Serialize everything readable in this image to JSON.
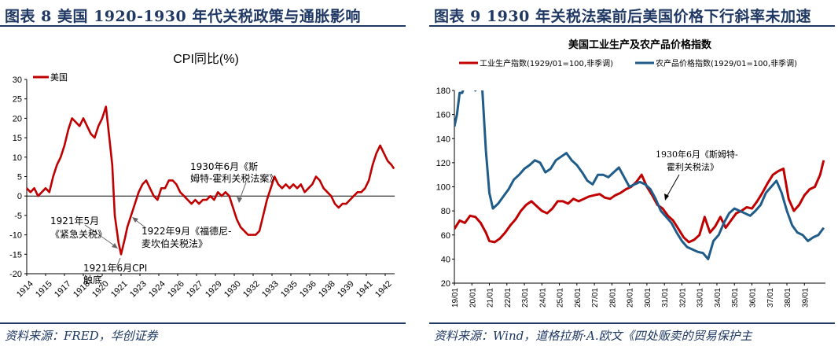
{
  "left": {
    "figure_title": "图表 8   美国 1920-1930 年代关税政策与通胀影响",
    "source": "资料来源：FRED，华创证券",
    "chart_data": {
      "type": "line",
      "title": "CPI同比(%)",
      "legend": [
        "美国"
      ],
      "legend_position": "top-left",
      "color": "#c00000",
      "ylim": [
        -20,
        30
      ],
      "yticks": [
        30,
        25,
        20,
        15,
        10,
        5,
        0,
        -5,
        -10,
        -15,
        -20
      ],
      "xlim": [
        1914,
        1943.25
      ],
      "xticks": [
        "1914",
        "1915",
        "1917",
        "1918",
        "1920",
        "1921",
        "1923",
        "1924",
        "1926",
        "1927",
        "1929",
        "1930",
        "1932",
        "1933",
        "1935",
        "1936",
        "1938",
        "1939",
        "1941",
        "1942"
      ],
      "xtick_years": [
        1914,
        1915.5,
        1917,
        1918.5,
        1920,
        1921.5,
        1923,
        1924.5,
        1926,
        1927.5,
        1929,
        1930.5,
        1932,
        1933.5,
        1935,
        1936.5,
        1938,
        1939.5,
        1941,
        1942.5
      ],
      "series": [
        {
          "name": "美国",
          "x": [
            1914,
            1914.3,
            1914.6,
            1914.9,
            1915.2,
            1915.5,
            1915.8,
            1916.1,
            1916.4,
            1916.7,
            1917.0,
            1917.3,
            1917.6,
            1917.9,
            1918.2,
            1918.5,
            1918.8,
            1919.1,
            1919.4,
            1919.7,
            1920.0,
            1920.3,
            1920.5,
            1920.8,
            1921.0,
            1921.3,
            1921.5,
            1921.8,
            1922.0,
            1922.3,
            1922.6,
            1922.9,
            1923.2,
            1923.5,
            1923.8,
            1924.1,
            1924.4,
            1924.7,
            1925.0,
            1925.3,
            1925.6,
            1925.9,
            1926.2,
            1926.5,
            1926.8,
            1927.1,
            1927.4,
            1927.7,
            1928.0,
            1928.3,
            1928.6,
            1928.9,
            1929.2,
            1929.5,
            1929.8,
            1930.1,
            1930.4,
            1930.7,
            1931.0,
            1931.3,
            1931.6,
            1931.9,
            1932.2,
            1932.5,
            1932.8,
            1933.1,
            1933.4,
            1933.7,
            1934.0,
            1934.3,
            1934.6,
            1934.9,
            1935.2,
            1935.5,
            1935.8,
            1936.1,
            1936.4,
            1936.7,
            1937.0,
            1937.3,
            1937.6,
            1937.9,
            1938.2,
            1938.5,
            1938.8,
            1939.1,
            1939.4,
            1939.7,
            1940.0,
            1940.3,
            1940.6,
            1940.9,
            1941.2,
            1941.5,
            1941.8,
            1942.1,
            1942.4,
            1942.7,
            1943.0,
            1943.2
          ],
          "y": [
            2,
            1,
            2,
            0,
            1,
            2,
            1,
            5,
            8,
            10,
            13,
            17,
            20,
            19,
            18,
            20,
            18,
            16,
            15,
            18,
            20,
            23,
            17,
            8,
            -5,
            -12,
            -15,
            -11,
            -8,
            -5,
            -2,
            1,
            3,
            4,
            2,
            0,
            -1,
            2,
            2,
            4,
            4,
            3,
            1,
            0,
            -1,
            -2,
            -1,
            -2,
            -1,
            -1,
            0,
            -1,
            1,
            0,
            1,
            0,
            -3,
            -6,
            -8,
            -9,
            -10,
            -10,
            -10,
            -9,
            -5,
            -1,
            2,
            5,
            3,
            2,
            3,
            2,
            3,
            2,
            3,
            1,
            2,
            3,
            5,
            4,
            2,
            1,
            0,
            -2,
            -3,
            -2,
            -2,
            -1,
            0,
            1,
            1,
            2,
            4,
            8,
            11,
            13,
            11,
            9,
            8,
            7
          ]
        }
      ]
    },
    "annotations": {
      "smoot": "1930年6月《斯姆特-霍利关税法案》",
      "emergency": "1921年5月《紧急关税》",
      "fordney": "1922年9月《福德尼-麦坎伯关税法》",
      "cpi_low": "1921年6月CPI触底"
    }
  },
  "right": {
    "figure_title": "图表 9   1930 年关税法案前后美国价格下行斜率未加速",
    "source": "资料来源：Wind，道格拉斯·A.欧文《四处贩卖的贸易保护主",
    "chart_data": {
      "type": "line",
      "title": "美国工业生产及农产品价格指数",
      "legend_position": "top",
      "ylim": [
        20,
        180
      ],
      "yticks": [
        180,
        160,
        140,
        120,
        100,
        80,
        60,
        40,
        20
      ],
      "xlim": [
        1919,
        1940.2
      ],
      "xticks": [
        "19/01",
        "20/01",
        "21/01",
        "22/01",
        "23/01",
        "24/01",
        "25/01",
        "26/01",
        "27/01",
        "28/01",
        "29/01",
        "30/01",
        "31/01",
        "32/01",
        "33/01",
        "34/01",
        "35/01",
        "36/01",
        "37/01",
        "38/01",
        "39/01"
      ],
      "series": [
        {
          "name": "工业生产指数(1929/01=100,非季调)",
          "color": "#c00000",
          "x": [
            1919.0,
            1919.3,
            1919.6,
            1919.9,
            1920.2,
            1920.5,
            1920.8,
            1921.0,
            1921.3,
            1921.6,
            1921.9,
            1922.2,
            1922.5,
            1922.8,
            1923.1,
            1923.4,
            1923.7,
            1924.0,
            1924.3,
            1924.6,
            1924.9,
            1925.2,
            1925.5,
            1925.8,
            1926.1,
            1926.4,
            1926.7,
            1927.0,
            1927.3,
            1927.6,
            1927.9,
            1928.2,
            1928.5,
            1928.8,
            1929.1,
            1929.4,
            1929.7,
            1930.0,
            1930.3,
            1930.6,
            1930.9,
            1931.2,
            1931.5,
            1931.8,
            1932.1,
            1932.4,
            1932.7,
            1933.0,
            1933.3,
            1933.6,
            1933.9,
            1934.2,
            1934.5,
            1934.8,
            1935.1,
            1935.4,
            1935.7,
            1936.0,
            1936.3,
            1936.6,
            1936.9,
            1937.2,
            1937.5,
            1937.8,
            1938.1,
            1938.4,
            1938.7,
            1939.0,
            1939.3,
            1939.6,
            1939.9,
            1940.1
          ],
          "y": [
            65,
            72,
            70,
            76,
            75,
            70,
            62,
            55,
            54,
            57,
            62,
            68,
            73,
            80,
            85,
            88,
            84,
            80,
            78,
            82,
            88,
            88,
            86,
            90,
            88,
            90,
            92,
            93,
            94,
            91,
            90,
            93,
            95,
            98,
            100,
            104,
            110,
            100,
            93,
            85,
            82,
            76,
            72,
            65,
            58,
            54,
            56,
            60,
            75,
            62,
            67,
            75,
            66,
            72,
            78,
            80,
            83,
            82,
            88,
            95,
            103,
            110,
            113,
            115,
            90,
            80,
            85,
            93,
            98,
            100,
            110,
            122
          ]
        },
        {
          "name": "农产品价格指数(1929/01=100,非季调)",
          "color": "#1f5c8a",
          "x": [
            1919.0,
            1919.15,
            1919.3,
            1919.45,
            1919.6,
            1919.75,
            1920.0,
            1920.2,
            1920.4,
            1920.6,
            1920.8,
            1921.0,
            1921.2,
            1921.5,
            1921.8,
            1922.1,
            1922.4,
            1922.7,
            1923.0,
            1923.3,
            1923.6,
            1923.9,
            1924.2,
            1924.5,
            1924.8,
            1925.1,
            1925.4,
            1925.7,
            1926.0,
            1926.3,
            1926.6,
            1926.9,
            1927.2,
            1927.5,
            1927.8,
            1928.1,
            1928.4,
            1928.7,
            1929.0,
            1929.3,
            1929.6,
            1929.9,
            1930.2,
            1930.5,
            1930.8,
            1931.1,
            1931.4,
            1931.7,
            1932.0,
            1932.3,
            1932.6,
            1932.9,
            1933.2,
            1933.5,
            1933.8,
            1934.1,
            1934.4,
            1934.7,
            1935.0,
            1935.3,
            1935.6,
            1935.9,
            1936.2,
            1936.5,
            1936.8,
            1937.1,
            1937.4,
            1937.7,
            1938.0,
            1938.3,
            1938.6,
            1938.9,
            1939.2,
            1939.5,
            1939.8,
            1940.1
          ],
          "y": [
            150,
            160,
            178,
            178,
            185,
            190,
            190,
            180,
            185,
            180,
            130,
            95,
            82,
            86,
            92,
            98,
            106,
            110,
            115,
            118,
            122,
            120,
            112,
            115,
            122,
            125,
            128,
            122,
            118,
            112,
            105,
            102,
            110,
            110,
            108,
            112,
            116,
            108,
            100,
            102,
            104,
            102,
            98,
            90,
            80,
            75,
            70,
            62,
            55,
            50,
            48,
            46,
            45,
            40,
            55,
            60,
            70,
            78,
            82,
            80,
            78,
            76,
            80,
            85,
            95,
            100,
            105,
            95,
            80,
            68,
            62,
            60,
            55,
            58,
            60,
            66
          ]
        }
      ]
    },
    "annotation": {
      "line1": "1930年6月《斯姆特-",
      "line2": "霍利关税法》"
    }
  }
}
